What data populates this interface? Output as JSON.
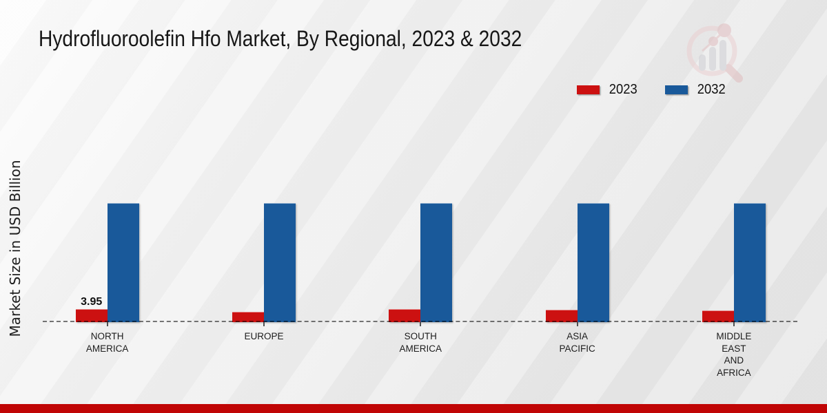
{
  "page": {
    "title": "Hydrofluoroolefin Hfo Market, By Regional, 2023 & 2032"
  },
  "y_axis": {
    "label": "Market Size in USD Billion"
  },
  "legend": [
    {
      "label": "2023",
      "color": "#cc1111"
    },
    {
      "label": "2032",
      "color": "#19599a"
    }
  ],
  "watermark_icon": "magnifier-bar-chart-logo",
  "colors": {
    "series_2023": "#cc1111",
    "series_2032": "#19599a",
    "footer_band": "#c00505",
    "baseline": "#787878"
  },
  "chart_data": {
    "type": "bar",
    "title": "Hydrofluoroolefin Hfo Market, By Regional, 2023 & 2032",
    "xlabel": "",
    "ylabel": "Market Size in USD Billion",
    "categories": [
      "North America",
      "Europe",
      "South America",
      "Asia Pacific",
      "Middle East and Africa"
    ],
    "tick_lines": [
      [
        "NORTH",
        "AMERICA"
      ],
      [
        "EUROPE"
      ],
      [
        "SOUTH",
        "AMERICA"
      ],
      [
        "ASIA",
        "PACIFIC"
      ],
      [
        "MIDDLE",
        "EAST",
        "AND",
        "AFRICA"
      ]
    ],
    "series": [
      {
        "name": "2023",
        "color": "#cc1111",
        "values": [
          3.95,
          3.1,
          3.95,
          3.7,
          3.5
        ]
      },
      {
        "name": "2032",
        "color": "#19599a",
        "values": [
          37.7,
          37.7,
          37.7,
          37.7,
          37.7
        ]
      }
    ],
    "data_labels": [
      "3.95",
      "",
      "",
      "",
      ""
    ],
    "ylim": [
      0,
      40
    ],
    "grid": false,
    "legend_position": "top-right"
  },
  "footer": {
    "band_color": "#c00505"
  }
}
